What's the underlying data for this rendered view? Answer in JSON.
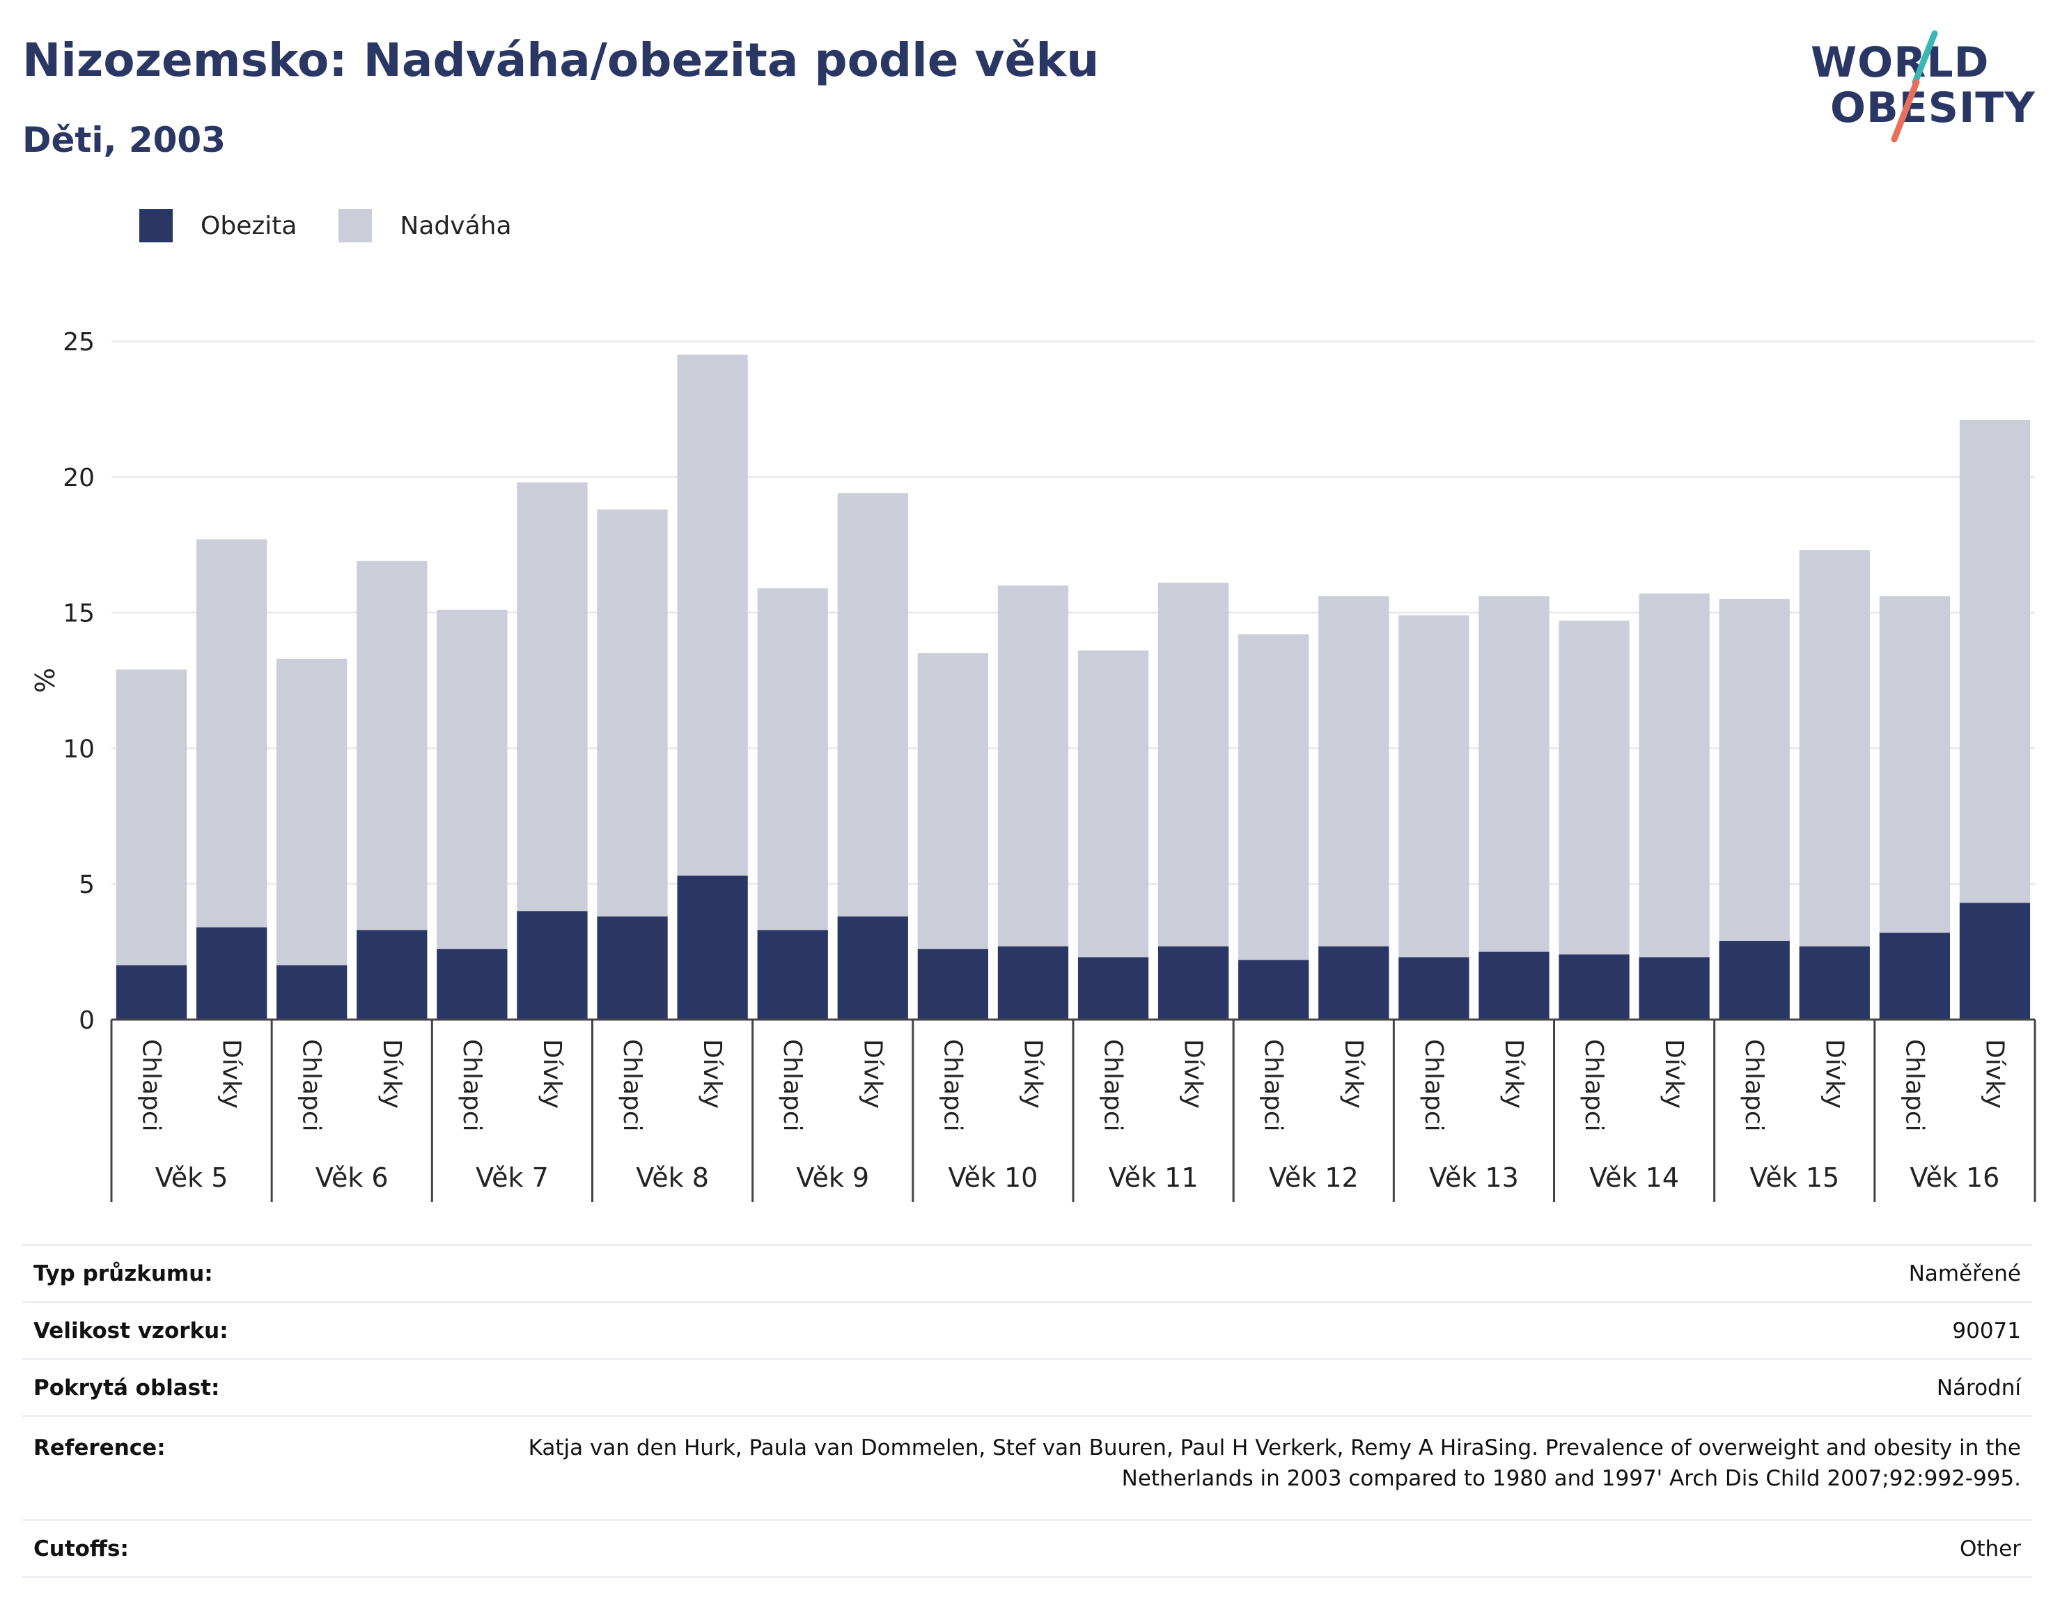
{
  "header": {
    "title": "Nizozemsko: Nadváha/obezita podle věku",
    "subtitle": "Děti, 2003"
  },
  "logo": {
    "line1": "WORLD",
    "line2": "OBESITY",
    "colors": {
      "text": "#2a3663",
      "slash_top": "#3ab7b5",
      "slash_bottom": "#e8705a"
    }
  },
  "legend": {
    "items": [
      {
        "label": "Obezita",
        "color": "#2a3663"
      },
      {
        "label": "Nadváha",
        "color": "#cbcdd9"
      }
    ]
  },
  "chart_data": {
    "type": "bar",
    "stacked": true,
    "ylabel": "%",
    "ylim": [
      0,
      25
    ],
    "yticks": [
      0,
      5,
      10,
      15,
      20,
      25
    ],
    "grid": true,
    "legend_position": "top-left",
    "subgroups": [
      "Chlapci",
      "Dívky"
    ],
    "groups": [
      "Věk 5",
      "Věk 6",
      "Věk 7",
      "Věk 8",
      "Věk 9",
      "Věk 10",
      "Věk 11",
      "Věk 12",
      "Věk 13",
      "Věk 14",
      "Věk 15",
      "Věk 16"
    ],
    "series": [
      {
        "name": "Obezita",
        "color": "#2a3663",
        "values": [
          2.0,
          3.4,
          2.0,
          3.3,
          2.6,
          4.0,
          3.8,
          5.3,
          3.3,
          3.8,
          2.6,
          2.7,
          2.3,
          2.7,
          2.2,
          2.7,
          2.3,
          2.5,
          2.4,
          2.3,
          2.9,
          2.7,
          3.2,
          4.3
        ]
      },
      {
        "name": "Nadváha",
        "color": "#cbcdd9",
        "values": [
          10.9,
          14.3,
          11.3,
          13.6,
          12.5,
          15.8,
          15.0,
          19.2,
          12.6,
          15.6,
          10.9,
          13.3,
          11.3,
          13.4,
          12.0,
          12.9,
          12.6,
          13.1,
          12.3,
          13.4,
          12.6,
          14.6,
          12.4,
          17.8
        ]
      }
    ]
  },
  "info": {
    "rows": [
      {
        "key": "Typ průzkumu:",
        "value": "Naměřené"
      },
      {
        "key": "Velikost vzorku:",
        "value": "90071"
      },
      {
        "key": "Pokrytá oblast:",
        "value": "Národní"
      },
      {
        "key": "Reference:",
        "value": "Katja van den Hurk, Paula van Dommelen, Stef van Buuren, Paul H Verkerk, Remy A HiraSing. Prevalence of overweight and obesity in the Netherlands in 2003 compared to 1980 and 1997' Arch Dis Child 2007;92:992-995."
      },
      {
        "key": "Cutoffs:",
        "value": "Other"
      }
    ]
  }
}
